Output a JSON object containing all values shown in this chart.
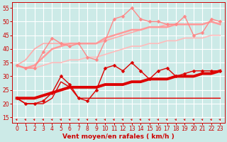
{
  "background_color": "#cceae7",
  "grid_color": "#ffffff",
  "xlabel": "Vent moyen/en rafales ( km/h )",
  "xticks": [
    0,
    1,
    2,
    3,
    4,
    5,
    6,
    7,
    8,
    9,
    10,
    11,
    12,
    13,
    14,
    15,
    16,
    17,
    18,
    19,
    20,
    21,
    22,
    23
  ],
  "yticks": [
    15,
    20,
    25,
    30,
    35,
    40,
    45,
    50,
    55
  ],
  "ylim": [
    13,
    57
  ],
  "xlim": [
    -0.5,
    23.5
  ],
  "series": [
    {
      "label": "mean_thick",
      "x": [
        0,
        1,
        2,
        3,
        4,
        5,
        6,
        7,
        8,
        9,
        10,
        11,
        12,
        13,
        14,
        15,
        16,
        17,
        18,
        19,
        20,
        21,
        22,
        23
      ],
      "y": [
        22,
        22,
        22,
        23,
        24,
        25,
        26,
        26,
        26,
        26,
        27,
        27,
        27,
        28,
        28,
        29,
        29,
        29,
        30,
        30,
        30,
        31,
        31,
        32
      ],
      "color": "#dd0000",
      "linewidth": 2.8,
      "marker": null,
      "markersize": 0,
      "alpha": 1.0,
      "zorder": 6
    },
    {
      "label": "mean_thin",
      "x": [
        0,
        1,
        2,
        3,
        4,
        5,
        6,
        7,
        8,
        9,
        10,
        11,
        12,
        13,
        14,
        15,
        16,
        17,
        18,
        19,
        20,
        21,
        22,
        23
      ],
      "y": [
        22,
        20,
        20,
        20,
        22,
        28,
        26,
        22,
        22,
        22,
        22,
        22,
        22,
        22,
        22,
        22,
        22,
        22,
        22,
        22,
        22,
        22,
        22,
        22
      ],
      "color": "#dd0000",
      "linewidth": 1.0,
      "marker": null,
      "markersize": 0,
      "alpha": 1.0,
      "zorder": 4
    },
    {
      "label": "gust_marked",
      "x": [
        0,
        1,
        2,
        3,
        4,
        5,
        6,
        7,
        8,
        9,
        10,
        11,
        12,
        13,
        14,
        15,
        16,
        17,
        18,
        19,
        20,
        21,
        22,
        23
      ],
      "y": [
        22,
        20,
        20,
        21,
        24,
        30,
        27,
        22,
        21,
        25,
        33,
        34,
        32,
        35,
        32,
        29,
        32,
        33,
        30,
        31,
        32,
        32,
        32,
        32
      ],
      "color": "#dd0000",
      "linewidth": 1.0,
      "marker": "D",
      "markersize": 2.5,
      "alpha": 1.0,
      "zorder": 5
    },
    {
      "label": "upper_smooth1",
      "x": [
        0,
        1,
        2,
        3,
        4,
        5,
        6,
        7,
        8,
        9,
        10,
        11,
        12,
        13,
        14,
        15,
        16,
        17,
        18,
        19,
        20,
        21,
        22,
        23
      ],
      "y": [
        34,
        33,
        34,
        37,
        40,
        41,
        42,
        42,
        42,
        42,
        44,
        45,
        46,
        47,
        47,
        48,
        48,
        48,
        49,
        49,
        49,
        49,
        50,
        49
      ],
      "color": "#ff9999",
      "linewidth": 1.8,
      "marker": null,
      "markersize": 0,
      "alpha": 1.0,
      "zorder": 3
    },
    {
      "label": "upper_smooth2",
      "x": [
        0,
        1,
        2,
        3,
        4,
        5,
        6,
        7,
        8,
        9,
        10,
        11,
        12,
        13,
        14,
        15,
        16,
        17,
        18,
        19,
        20,
        21,
        22,
        23
      ],
      "y": [
        34,
        36,
        40,
        42,
        42,
        42,
        42,
        42,
        42,
        42,
        43,
        44,
        45,
        46,
        47,
        48,
        48,
        49,
        49,
        49,
        49,
        49,
        50,
        49
      ],
      "color": "#ffaaaa",
      "linewidth": 1.2,
      "marker": null,
      "markersize": 0,
      "alpha": 1.0,
      "zorder": 2
    },
    {
      "label": "upper_smooth3",
      "x": [
        0,
        1,
        2,
        3,
        4,
        5,
        6,
        7,
        8,
        9,
        10,
        11,
        12,
        13,
        14,
        15,
        16,
        17,
        18,
        19,
        20,
        21,
        22,
        23
      ],
      "y": [
        34,
        33,
        33,
        34,
        35,
        35,
        36,
        36,
        37,
        37,
        38,
        39,
        40,
        41,
        41,
        42,
        42,
        43,
        43,
        44,
        44,
        44,
        45,
        45
      ],
      "color": "#ffbbbb",
      "linewidth": 1.2,
      "marker": null,
      "markersize": 0,
      "alpha": 1.0,
      "zorder": 2
    },
    {
      "label": "upper_gust_marked",
      "x": [
        0,
        1,
        2,
        3,
        4,
        5,
        6,
        7,
        8,
        9,
        10,
        11,
        12,
        13,
        14,
        15,
        16,
        17,
        18,
        19,
        20,
        21,
        22,
        23
      ],
      "y": [
        34,
        33,
        33,
        39,
        44,
        42,
        41,
        42,
        37,
        36,
        43,
        51,
        52,
        55,
        51,
        50,
        50,
        49,
        49,
        52,
        45,
        46,
        51,
        50
      ],
      "color": "#ff8888",
      "linewidth": 1.0,
      "marker": "D",
      "markersize": 2.5,
      "alpha": 1.0,
      "zorder": 4
    }
  ],
  "label_fontsize": 6.5,
  "tick_fontsize": 5.5
}
